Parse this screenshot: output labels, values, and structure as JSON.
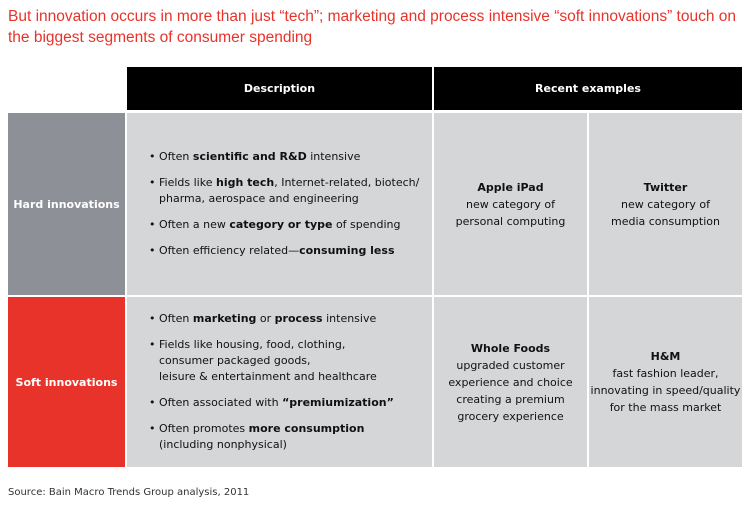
{
  "title": "But innovation occurs in more than just “tech”; marketing and process intensive “soft innovations” touch on the biggest segments of consumer spending",
  "table": {
    "header": {
      "description": "Description",
      "examples": "Recent examples"
    },
    "rows": [
      {
        "label": "Hard innovations",
        "bullets": [
          [
            [
              {
                "text": "Often ",
                "bold": false
              },
              {
                "text": "scientific and R&D",
                "bold": true
              },
              {
                "text": " intensive",
                "bold": false
              }
            ]
          ],
          [
            [
              {
                "text": "Fields like ",
                "bold": false
              },
              {
                "text": "high tech",
                "bold": true
              },
              {
                "text": ", Internet-related, biotech/",
                "bold": false
              }
            ],
            [
              {
                "text": "pharma, aerospace and engineering",
                "bold": false
              }
            ]
          ],
          [
            [
              {
                "text": "Often a new ",
                "bold": false
              },
              {
                "text": "category or type",
                "bold": true
              },
              {
                "text": " of spending",
                "bold": false
              }
            ]
          ],
          [
            [
              {
                "text": "Often efficiency related—",
                "bold": false
              },
              {
                "text": "consuming less",
                "bold": true
              }
            ]
          ]
        ],
        "examples": [
          {
            "name": "Apple iPad",
            "lines": [
              "new category of",
              "personal computing"
            ]
          },
          {
            "name": "Twitter",
            "lines": [
              "new category of",
              "media consumption"
            ]
          }
        ]
      },
      {
        "label": "Soft innovations",
        "bullets": [
          [
            [
              {
                "text": "Often ",
                "bold": false
              },
              {
                "text": "marketing",
                "bold": true
              },
              {
                "text": " or ",
                "bold": false
              },
              {
                "text": "process",
                "bold": true
              },
              {
                "text": " intensive",
                "bold": false
              }
            ]
          ],
          [
            [
              {
                "text": "Fields like housing, food, clothing,",
                "bold": false
              }
            ],
            [
              {
                "text": "consumer packaged goods,",
                "bold": false
              }
            ],
            [
              {
                "text": "leisure & entertainment and healthcare",
                "bold": false
              }
            ]
          ],
          [
            [
              {
                "text": "Often associated with ",
                "bold": false
              },
              {
                "text": "“premiumization”",
                "bold": true
              }
            ]
          ],
          [
            [
              {
                "text": "Often promotes ",
                "bold": false
              },
              {
                "text": "more consumption",
                "bold": true
              }
            ],
            [
              {
                "text": "(including nonphysical)",
                "bold": false
              }
            ]
          ]
        ],
        "examples": [
          {
            "name": "Whole Foods",
            "lines": [
              "upgraded customer",
              "experience and choice",
              "creating a premium",
              "grocery experience"
            ]
          },
          {
            "name": "H&M",
            "lines": [
              "fast fashion leader,",
              "innovating in speed/quality",
              "for the mass market"
            ]
          }
        ]
      }
    ]
  },
  "source": "Source: Bain Macro Trends Group analysis, 2011"
}
